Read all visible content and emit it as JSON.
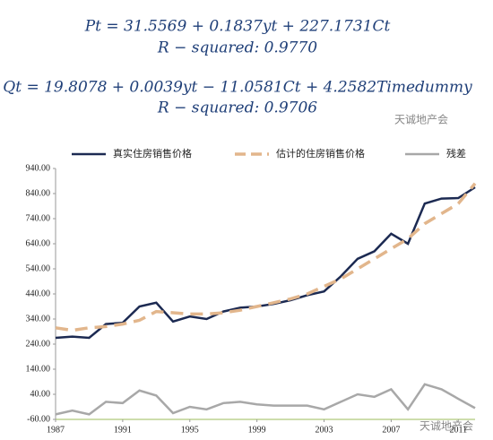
{
  "equations": [
    "Pt = 31.5569 + 0.1837yt + 227.1731Ct",
    "R − squared: 0.9770",
    "Qt = 19.8078 + 0.0039yt − 11.0581Ct + 4.2582Timedummy",
    "R − squared: 0.9706"
  ],
  "watermark": "天诚地产会",
  "chart_data": {
    "type": "line",
    "x": [
      1987,
      1988,
      1989,
      1990,
      1991,
      1992,
      1993,
      1994,
      1995,
      1996,
      1997,
      1998,
      1999,
      2000,
      2001,
      2002,
      2003,
      2004,
      2005,
      2006,
      2007,
      2008,
      2009,
      2010,
      2011,
      2012
    ],
    "series": [
      {
        "name": "真实住房销售价格",
        "color": "#1c2a52",
        "values": [
          265,
          270,
          265,
          320,
          325,
          390,
          405,
          330,
          350,
          340,
          370,
          385,
          390,
          400,
          415,
          435,
          450,
          510,
          580,
          610,
          680,
          640,
          800,
          820,
          822,
          865
        ]
      },
      {
        "name": "估计的住房销售价格",
        "color": "#e2b68c",
        "dashed": true,
        "values": [
          305,
          295,
          305,
          310,
          320,
          335,
          370,
          365,
          360,
          360,
          365,
          375,
          390,
          405,
          420,
          440,
          470,
          500,
          540,
          580,
          620,
          660,
          720,
          760,
          800,
          880
        ]
      },
      {
        "name": "残差",
        "color": "#a8a8a8",
        "values": [
          -40,
          -25,
          -40,
          10,
          5,
          55,
          35,
          -35,
          -10,
          -20,
          5,
          10,
          0,
          -5,
          -5,
          -5,
          -20,
          10,
          40,
          30,
          60,
          -20,
          80,
          60,
          22,
          -15
        ]
      }
    ],
    "xlim": [
      1987,
      2012
    ],
    "xticks": [
      1987,
      1991,
      1995,
      1999,
      2003,
      2007,
      2011
    ],
    "ylim": [
      -60,
      940
    ],
    "yticks": [
      {
        "value": 940,
        "label": "940.00"
      },
      {
        "value": 840,
        "label": "840.00"
      },
      {
        "value": 740,
        "label": "740.00"
      },
      {
        "value": 640,
        "label": "640.00"
      },
      {
        "value": 540,
        "label": "540.00"
      },
      {
        "value": 440,
        "label": "440.00"
      },
      {
        "value": 340,
        "label": "340.00"
      },
      {
        "value": 240,
        "label": "240.00"
      },
      {
        "value": 140,
        "label": "140.00"
      },
      {
        "value": 40,
        "label": "40.00"
      },
      {
        "value": -60,
        "label": "-60.00"
      }
    ]
  }
}
